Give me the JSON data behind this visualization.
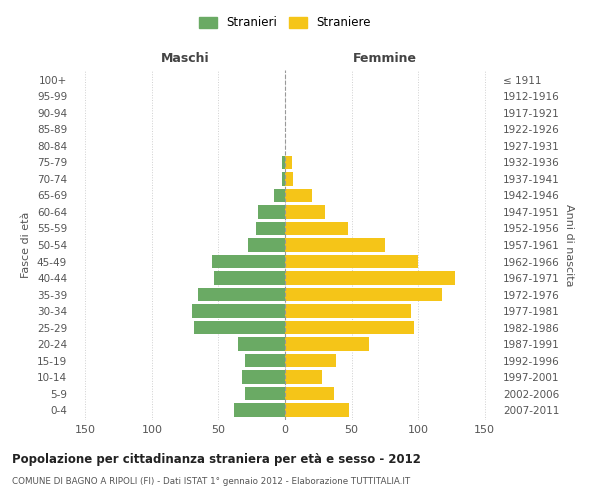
{
  "age_groups": [
    "0-4",
    "5-9",
    "10-14",
    "15-19",
    "20-24",
    "25-29",
    "30-34",
    "35-39",
    "40-44",
    "45-49",
    "50-54",
    "55-59",
    "60-64",
    "65-69",
    "70-74",
    "75-79",
    "80-84",
    "85-89",
    "90-94",
    "95-99",
    "100+"
  ],
  "birth_years": [
    "2007-2011",
    "2002-2006",
    "1997-2001",
    "1992-1996",
    "1987-1991",
    "1982-1986",
    "1977-1981",
    "1972-1976",
    "1967-1971",
    "1962-1966",
    "1957-1961",
    "1952-1956",
    "1947-1951",
    "1942-1946",
    "1937-1941",
    "1932-1936",
    "1927-1931",
    "1922-1926",
    "1917-1921",
    "1912-1916",
    "≤ 1911"
  ],
  "males": [
    38,
    30,
    32,
    30,
    35,
    68,
    70,
    65,
    53,
    55,
    28,
    22,
    20,
    8,
    2,
    2,
    0,
    0,
    0,
    0,
    0
  ],
  "females": [
    48,
    37,
    28,
    38,
    63,
    97,
    95,
    118,
    128,
    100,
    75,
    47,
    30,
    20,
    6,
    5,
    0,
    0,
    0,
    0,
    0
  ],
  "male_color": "#6aaa64",
  "female_color": "#f5c518",
  "title": "Popolazione per cittadinanza straniera per età e sesso - 2012",
  "subtitle": "COMUNE DI BAGNO A RIPOLI (FI) - Dati ISTAT 1° gennaio 2012 - Elaborazione TUTTITALIA.IT",
  "xlabel_left": "Maschi",
  "xlabel_right": "Femmine",
  "ylabel_left": "Fasce di età",
  "ylabel_right": "Anni di nascita",
  "legend_male": "Stranieri",
  "legend_female": "Straniere",
  "xlim": 160,
  "background_color": "#ffffff",
  "grid_color": "#d0d0d0"
}
